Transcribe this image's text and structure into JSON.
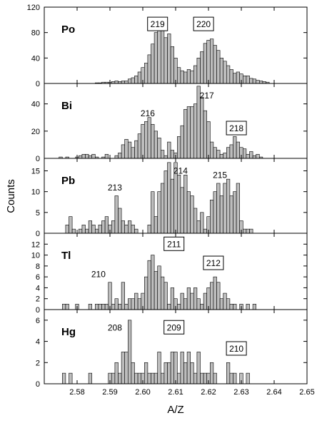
{
  "chart_data": {
    "type": "bar",
    "xlabel": "A/Z",
    "ylabel": "Counts",
    "xlim": [
      2.57,
      2.65
    ],
    "x_ticks": [
      "2.58",
      "2.59",
      "2.60",
      "2.61",
      "2.62",
      "2.63",
      "2.64",
      "2.65"
    ],
    "bin_width": 0.001,
    "panels": [
      {
        "element": "Po",
        "ylim": [
          0,
          120
        ],
        "y_ticks": [
          "0",
          "40",
          "80",
          "120"
        ],
        "peaks": [
          {
            "label": "219",
            "x": 2.6045,
            "y": 93,
            "boxed": true
          },
          {
            "label": "220",
            "x": 2.6185,
            "y": 93,
            "boxed": true
          }
        ],
        "bins": [
          [
            2.586,
            1
          ],
          [
            2.587,
            1
          ],
          [
            2.588,
            2
          ],
          [
            2.589,
            2
          ],
          [
            2.59,
            2
          ],
          [
            2.591,
            3
          ],
          [
            2.592,
            4
          ],
          [
            2.593,
            3
          ],
          [
            2.594,
            4
          ],
          [
            2.595,
            4
          ],
          [
            2.596,
            7
          ],
          [
            2.597,
            9
          ],
          [
            2.598,
            12
          ],
          [
            2.599,
            18
          ],
          [
            2.6,
            25
          ],
          [
            2.601,
            32
          ],
          [
            2.602,
            45
          ],
          [
            2.603,
            62
          ],
          [
            2.604,
            80
          ],
          [
            2.605,
            102
          ],
          [
            2.606,
            88
          ],
          [
            2.607,
            72
          ],
          [
            2.608,
            78
          ],
          [
            2.609,
            58
          ],
          [
            2.61,
            40
          ],
          [
            2.611,
            25
          ],
          [
            2.612,
            20
          ],
          [
            2.613,
            18
          ],
          [
            2.614,
            22
          ],
          [
            2.615,
            20
          ],
          [
            2.616,
            28
          ],
          [
            2.617,
            40
          ],
          [
            2.618,
            50
          ],
          [
            2.619,
            63
          ],
          [
            2.62,
            68
          ],
          [
            2.621,
            70
          ],
          [
            2.622,
            60
          ],
          [
            2.623,
            52
          ],
          [
            2.624,
            40
          ],
          [
            2.625,
            35
          ],
          [
            2.626,
            28
          ],
          [
            2.627,
            22
          ],
          [
            2.628,
            16
          ],
          [
            2.629,
            18
          ],
          [
            2.63,
            15
          ],
          [
            2.631,
            12
          ],
          [
            2.632,
            12
          ],
          [
            2.633,
            8
          ],
          [
            2.634,
            7
          ],
          [
            2.635,
            5
          ],
          [
            2.636,
            4
          ],
          [
            2.637,
            3
          ],
          [
            2.638,
            2
          ]
        ]
      },
      {
        "element": "Bi",
        "ylim": [
          0,
          55
        ],
        "y_ticks": [
          "0",
          "20",
          "40"
        ],
        "peaks": [
          {
            "label": "216",
            "x": 2.6015,
            "y": 33,
            "boxed": false
          },
          {
            "label": "217",
            "x": 2.6195,
            "y": 46,
            "boxed": false
          },
          {
            "label": "218",
            "x": 2.6285,
            "y": 22,
            "boxed": true
          }
        ],
        "bins": [
          [
            2.575,
            1
          ],
          [
            2.577,
            1
          ],
          [
            2.58,
            1
          ],
          [
            2.581,
            2
          ],
          [
            2.582,
            3
          ],
          [
            2.583,
            3
          ],
          [
            2.584,
            2
          ],
          [
            2.585,
            3
          ],
          [
            2.586,
            1
          ],
          [
            2.588,
            1
          ],
          [
            2.589,
            3
          ],
          [
            2.592,
            2
          ],
          [
            2.593,
            4
          ],
          [
            2.594,
            10
          ],
          [
            2.595,
            14
          ],
          [
            2.596,
            12
          ],
          [
            2.597,
            8
          ],
          [
            2.598,
            13
          ],
          [
            2.599,
            18
          ],
          [
            2.6,
            25
          ],
          [
            2.601,
            27
          ],
          [
            2.602,
            30
          ],
          [
            2.603,
            25
          ],
          [
            2.604,
            20
          ],
          [
            2.605,
            15
          ],
          [
            2.606,
            6
          ],
          [
            2.607,
            2
          ],
          [
            2.608,
            12
          ],
          [
            2.609,
            6
          ],
          [
            2.61,
            4
          ],
          [
            2.611,
            16
          ],
          [
            2.612,
            24
          ],
          [
            2.613,
            36
          ],
          [
            2.614,
            38
          ],
          [
            2.615,
            38
          ],
          [
            2.616,
            40
          ],
          [
            2.617,
            53
          ],
          [
            2.618,
            45
          ],
          [
            2.619,
            35
          ],
          [
            2.62,
            27
          ],
          [
            2.621,
            12
          ],
          [
            2.622,
            8
          ],
          [
            2.623,
            6
          ],
          [
            2.624,
            3
          ],
          [
            2.625,
            4
          ],
          [
            2.626,
            8
          ],
          [
            2.627,
            10
          ],
          [
            2.628,
            16
          ],
          [
            2.629,
            12
          ],
          [
            2.63,
            8
          ],
          [
            2.631,
            7
          ],
          [
            2.632,
            3
          ],
          [
            2.633,
            5
          ],
          [
            2.634,
            2
          ],
          [
            2.635,
            3
          ],
          [
            2.636,
            1
          ]
        ]
      },
      {
        "element": "Pb",
        "ylim": [
          0,
          18
        ],
        "y_ticks": [
          "0",
          "5",
          "10",
          "15"
        ],
        "peaks": [
          {
            "label": "213",
            "x": 2.5915,
            "y": 11,
            "boxed": false
          },
          {
            "label": "214",
            "x": 2.6115,
            "y": 15,
            "boxed": false
          },
          {
            "label": "215",
            "x": 2.6235,
            "y": 14,
            "boxed": false
          }
        ],
        "bins": [
          [
            2.577,
            2
          ],
          [
            2.578,
            4
          ],
          [
            2.579,
            1
          ],
          [
            2.581,
            1
          ],
          [
            2.582,
            2
          ],
          [
            2.583,
            1
          ],
          [
            2.584,
            3
          ],
          [
            2.585,
            2
          ],
          [
            2.586,
            1
          ],
          [
            2.587,
            2
          ],
          [
            2.588,
            3
          ],
          [
            2.589,
            4
          ],
          [
            2.59,
            2
          ],
          [
            2.591,
            3
          ],
          [
            2.592,
            9
          ],
          [
            2.593,
            6
          ],
          [
            2.594,
            3
          ],
          [
            2.595,
            2
          ],
          [
            2.596,
            3
          ],
          [
            2.597,
            2
          ],
          [
            2.598,
            1
          ],
          [
            2.602,
            2
          ],
          [
            2.603,
            10
          ],
          [
            2.604,
            4
          ],
          [
            2.605,
            10
          ],
          [
            2.606,
            12
          ],
          [
            2.607,
            15
          ],
          [
            2.608,
            17
          ],
          [
            2.609,
            13
          ],
          [
            2.61,
            17
          ],
          [
            2.611,
            14
          ],
          [
            2.612,
            11
          ],
          [
            2.613,
            14
          ],
          [
            2.614,
            10
          ],
          [
            2.615,
            9
          ],
          [
            2.616,
            6
          ],
          [
            2.617,
            3
          ],
          [
            2.618,
            5
          ],
          [
            2.619,
            1
          ],
          [
            2.62,
            4
          ],
          [
            2.621,
            8
          ],
          [
            2.622,
            10
          ],
          [
            2.623,
            12
          ],
          [
            2.624,
            9
          ],
          [
            2.625,
            12
          ],
          [
            2.626,
            13
          ],
          [
            2.627,
            9
          ],
          [
            2.628,
            10
          ],
          [
            2.629,
            12
          ],
          [
            2.63,
            3
          ],
          [
            2.631,
            1
          ],
          [
            2.632,
            1
          ],
          [
            2.633,
            1
          ]
        ]
      },
      {
        "element": "Tl",
        "ylim": [
          0,
          14
        ],
        "y_ticks": [
          "0",
          "2",
          "4",
          "6",
          "8",
          "10",
          "12"
        ],
        "peaks": [
          {
            "label": "210",
            "x": 2.5865,
            "y": 6.5,
            "boxed": false
          },
          {
            "label": "211",
            "x": 2.6095,
            "y": 12,
            "boxed": true
          },
          {
            "label": "212",
            "x": 2.6215,
            "y": 8.5,
            "boxed": true
          }
        ],
        "bins": [
          [
            2.576,
            1
          ],
          [
            2.577,
            1
          ],
          [
            2.58,
            1
          ],
          [
            2.584,
            1
          ],
          [
            2.586,
            1
          ],
          [
            2.587,
            1
          ],
          [
            2.588,
            1
          ],
          [
            2.589,
            1
          ],
          [
            2.59,
            5
          ],
          [
            2.591,
            1
          ],
          [
            2.592,
            2
          ],
          [
            2.593,
            1
          ],
          [
            2.594,
            5
          ],
          [
            2.595,
            1
          ],
          [
            2.596,
            2
          ],
          [
            2.597,
            2
          ],
          [
            2.598,
            3
          ],
          [
            2.599,
            2
          ],
          [
            2.6,
            3
          ],
          [
            2.601,
            6
          ],
          [
            2.602,
            9
          ],
          [
            2.603,
            10
          ],
          [
            2.604,
            7
          ],
          [
            2.605,
            8
          ],
          [
            2.606,
            6
          ],
          [
            2.607,
            5
          ],
          [
            2.608,
            1
          ],
          [
            2.609,
            4
          ],
          [
            2.61,
            2
          ],
          [
            2.611,
            1
          ],
          [
            2.612,
            3
          ],
          [
            2.613,
            2
          ],
          [
            2.614,
            4
          ],
          [
            2.615,
            3
          ],
          [
            2.616,
            4
          ],
          [
            2.617,
            2
          ],
          [
            2.618,
            1
          ],
          [
            2.619,
            3
          ],
          [
            2.62,
            4
          ],
          [
            2.621,
            5
          ],
          [
            2.622,
            6
          ],
          [
            2.623,
            5
          ],
          [
            2.624,
            2
          ],
          [
            2.625,
            3
          ],
          [
            2.626,
            2
          ],
          [
            2.627,
            1
          ],
          [
            2.628,
            1
          ],
          [
            2.63,
            1
          ],
          [
            2.632,
            1
          ],
          [
            2.634,
            1
          ]
        ]
      },
      {
        "element": "Hg",
        "ylim": [
          0,
          7
        ],
        "y_ticks": [
          "0",
          "2",
          "4",
          "6"
        ],
        "peaks": [
          {
            "label": "208",
            "x": 2.5915,
            "y": 5.3,
            "boxed": false
          },
          {
            "label": "209",
            "x": 2.6095,
            "y": 5.3,
            "boxed": true
          },
          {
            "label": "210",
            "x": 2.6285,
            "y": 3.3,
            "boxed": true
          }
        ],
        "bins": [
          [
            2.576,
            1
          ],
          [
            2.578,
            1
          ],
          [
            2.584,
            1
          ],
          [
            2.59,
            1
          ],
          [
            2.591,
            1
          ],
          [
            2.592,
            2
          ],
          [
            2.593,
            1
          ],
          [
            2.594,
            3
          ],
          [
            2.595,
            3
          ],
          [
            2.596,
            6
          ],
          [
            2.597,
            2
          ],
          [
            2.598,
            1
          ],
          [
            2.599,
            1
          ],
          [
            2.6,
            1
          ],
          [
            2.601,
            2
          ],
          [
            2.602,
            1
          ],
          [
            2.603,
            1
          ],
          [
            2.604,
            1
          ],
          [
            2.605,
            3
          ],
          [
            2.606,
            1
          ],
          [
            2.607,
            2
          ],
          [
            2.608,
            2
          ],
          [
            2.609,
            3
          ],
          [
            2.61,
            3
          ],
          [
            2.611,
            1
          ],
          [
            2.612,
            3
          ],
          [
            2.613,
            2
          ],
          [
            2.614,
            3
          ],
          [
            2.615,
            2
          ],
          [
            2.616,
            1
          ],
          [
            2.617,
            3
          ],
          [
            2.618,
            1
          ],
          [
            2.619,
            1
          ],
          [
            2.62,
            1
          ],
          [
            2.621,
            2
          ],
          [
            2.622,
            1
          ],
          [
            2.626,
            2
          ],
          [
            2.627,
            1
          ],
          [
            2.628,
            1
          ],
          [
            2.63,
            1
          ],
          [
            2.632,
            1
          ]
        ]
      }
    ]
  }
}
